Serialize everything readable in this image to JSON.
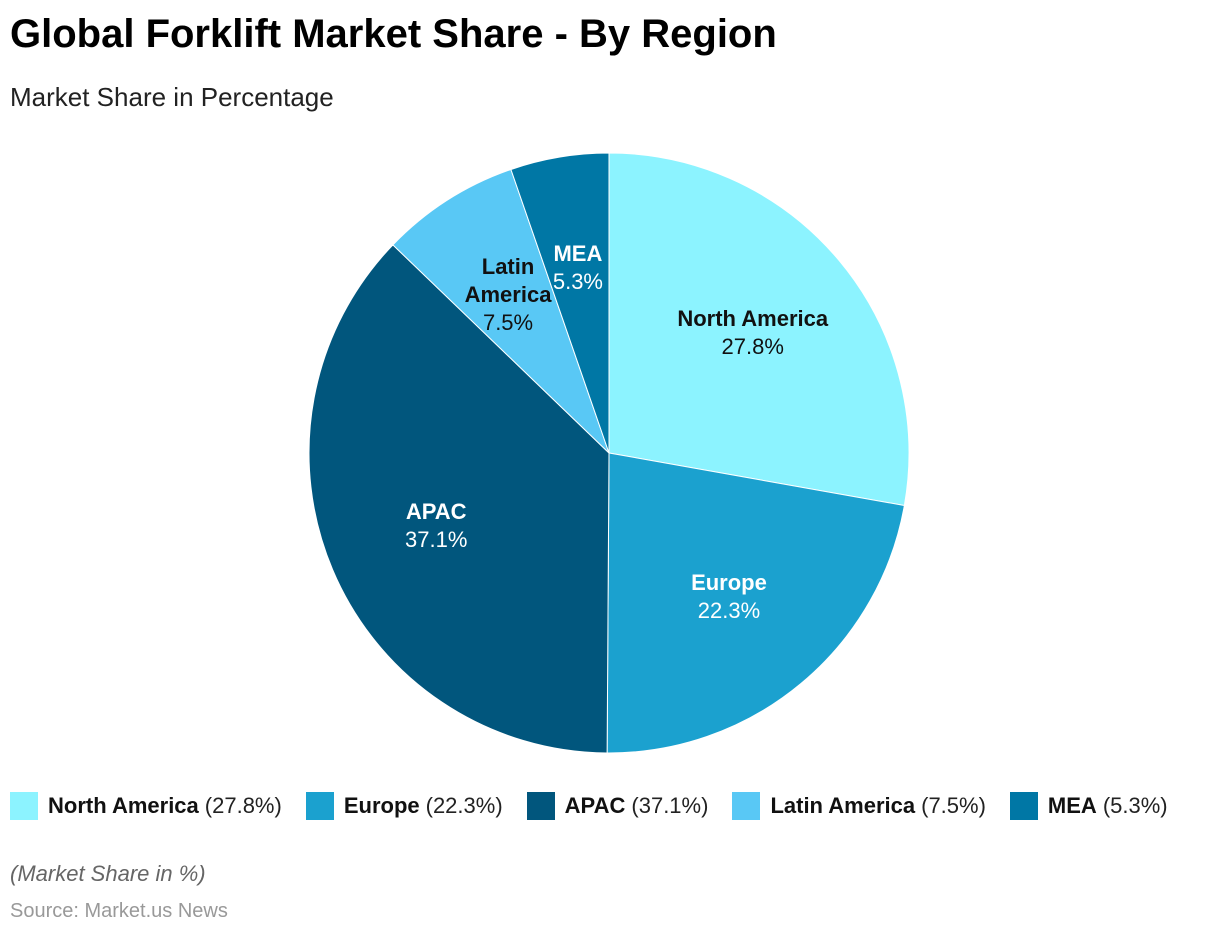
{
  "chart_data": {
    "type": "pie",
    "title": "Global Forklift Market Share - By Region",
    "subtitle": "Market Share in Percentage",
    "slices": [
      {
        "name": "North America",
        "value": 27.8,
        "label": "27.8%",
        "legend_value": "(27.8%)",
        "color": "#8CF3FF",
        "text_color": "#111111"
      },
      {
        "name": "Europe",
        "value": 22.3,
        "label": "22.3%",
        "legend_value": "(22.3%)",
        "color": "#1BA1CF",
        "text_color": "#FFFFFF"
      },
      {
        "name": "APAC",
        "value": 37.1,
        "label": "37.1%",
        "legend_value": "(37.1%)",
        "color": "#01567D",
        "text_color": "#FFFFFF"
      },
      {
        "name": "Latin America",
        "value": 7.5,
        "label": "7.5%",
        "legend_value": "(7.5%)",
        "color": "#59C8F5",
        "text_color": "#111111"
      },
      {
        "name": "MEA",
        "value": 5.3,
        "label": "5.3%",
        "legend_value": "(5.3%)",
        "color": "#0077A5",
        "text_color": "#FFFFFF"
      }
    ],
    "legend_position": "bottom",
    "note": "(Market Share in %)",
    "source": "Source: Market.us News"
  }
}
